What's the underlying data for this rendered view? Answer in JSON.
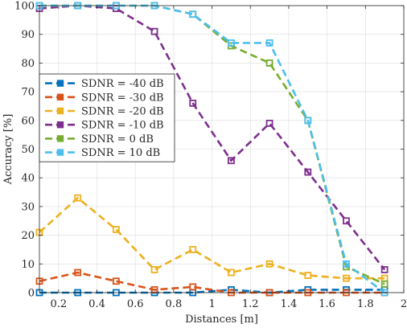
{
  "chart_data": {
    "type": "line",
    "title": "",
    "xlabel": "Distances [m]",
    "ylabel": "Accuracy [%]",
    "xlim": [
      0.1,
      2
    ],
    "ylim": [
      0,
      100
    ],
    "xticks": [
      0.2,
      0.4,
      0.6,
      0.8,
      1,
      1.2,
      1.4,
      1.6,
      1.8,
      2
    ],
    "xtick_labels": [
      "0.2",
      "0.4",
      "0.6",
      "0.8",
      "1",
      "1.2",
      "1.4",
      "1.6",
      "1.8",
      "2"
    ],
    "yticks": [
      0,
      10,
      20,
      30,
      40,
      50,
      60,
      70,
      80,
      90,
      100
    ],
    "ytick_labels": [
      "0",
      "10",
      "20",
      "30",
      "40",
      "50",
      "60",
      "70",
      "80",
      "90",
      "100"
    ],
    "grid": true,
    "legend_position": "middle-left",
    "x": [
      0.1,
      0.3,
      0.5,
      0.7,
      0.9,
      1.1,
      1.3,
      1.5,
      1.7,
      1.9
    ],
    "series": [
      {
        "name": "SDNR = -40 dB",
        "color": "#0072BD",
        "values": [
          0,
          0,
          0,
          0,
          0,
          1,
          0,
          1,
          1,
          1
        ]
      },
      {
        "name": "SDNR = -30 dB",
        "color": "#D95319",
        "values": [
          4,
          7,
          4,
          1,
          2,
          0,
          0,
          0,
          0,
          0
        ]
      },
      {
        "name": "SDNR = -20 dB",
        "color": "#EDB120",
        "values": [
          21,
          33,
          22,
          8,
          15,
          7,
          10,
          6,
          5,
          5
        ]
      },
      {
        "name": "SDNR = -10 dB",
        "color": "#7E2F8E",
        "values": [
          99,
          100,
          99,
          91,
          66,
          46,
          59,
          42,
          25,
          8
        ]
      },
      {
        "name": "SDNR = 0 dB",
        "color": "#77AC30",
        "values": [
          100,
          100,
          100,
          100,
          97,
          86,
          80,
          60,
          9,
          3
        ]
      },
      {
        "name": "SDNR = 10 dB",
        "color": "#4DBEEE",
        "values": [
          100,
          100,
          100,
          100,
          97,
          87,
          87,
          60,
          10,
          0
        ]
      }
    ]
  }
}
